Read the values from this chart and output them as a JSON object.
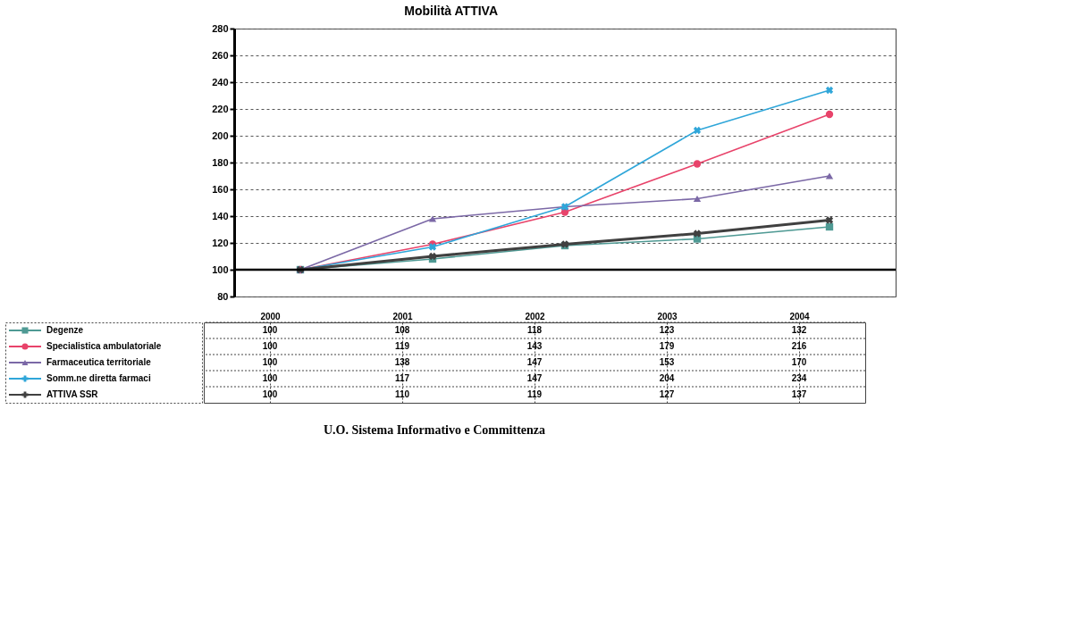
{
  "chart_data": {
    "type": "line",
    "title": "Mobilità ATTIVA",
    "categories": [
      "2000",
      "2001",
      "2002",
      "2003",
      "2004"
    ],
    "series": [
      {
        "name": "Degenze",
        "color": "#4f9a94",
        "marker": "square",
        "values": [
          100,
          108,
          118,
          123,
          132
        ]
      },
      {
        "name": "Specialistica ambulatoriale",
        "color": "#e8436a",
        "marker": "circle",
        "values": [
          100,
          119,
          143,
          179,
          216
        ]
      },
      {
        "name": "Farmaceutica territoriale",
        "color": "#7b68a6",
        "marker": "triangle",
        "values": [
          100,
          138,
          147,
          153,
          170
        ]
      },
      {
        "name": "Somm.ne diretta farmaci",
        "color": "#2fa6d9",
        "marker": "cross",
        "values": [
          100,
          117,
          147,
          204,
          234
        ]
      },
      {
        "name": "ATTIVA SSR",
        "color": "#404040",
        "marker": "cross",
        "values": [
          100,
          110,
          119,
          127,
          137
        ]
      }
    ],
    "ylim": [
      80,
      280
    ],
    "yticks": [
      80,
      100,
      120,
      140,
      160,
      180,
      200,
      220,
      240,
      260,
      280
    ],
    "ref_lines": [
      {
        "axis": "y",
        "value": 100,
        "color": "#000000"
      }
    ],
    "grid": "y",
    "data_labels": true,
    "legend": "bottom left",
    "annotations": [
      "U.O. Sistema Informativo e Committenza"
    ]
  }
}
